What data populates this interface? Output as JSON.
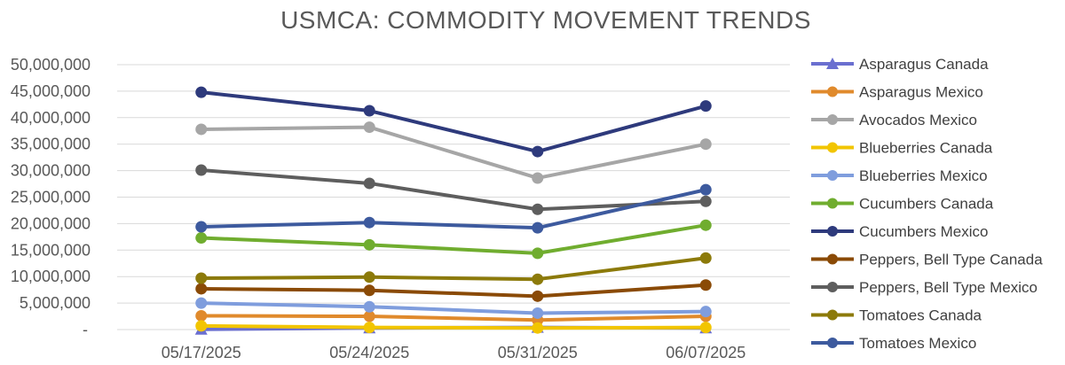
{
  "chart_data": {
    "type": "line",
    "title": "USMCA: COMMODITY MOVEMENT TRENDS",
    "xlabel": "",
    "ylabel": "",
    "categories": [
      "05/17/2025",
      "05/24/2025",
      "05/31/2025",
      "06/07/2025"
    ],
    "ylim": [
      0,
      50000000
    ],
    "yticks": [
      0,
      5000000,
      10000000,
      15000000,
      20000000,
      25000000,
      30000000,
      35000000,
      40000000,
      45000000,
      50000000
    ],
    "ytick_labels": [
      "-",
      "5,000,000",
      "10,000,000",
      "15,000,000",
      "20,000,000",
      "25,000,000",
      "30,000,000",
      "35,000,000",
      "40,000,000",
      "45,000,000",
      "50,000,000"
    ],
    "grid": true,
    "legend": "right",
    "series": [
      {
        "name": "Asparagus Canada",
        "color": "#6a6fd0",
        "marker": "triangle",
        "values": [
          50000,
          300000,
          400000,
          300000
        ]
      },
      {
        "name": "Asparagus Mexico",
        "color": "#e08a2c",
        "marker": "circle",
        "values": [
          2600000,
          2500000,
          1800000,
          2500000
        ]
      },
      {
        "name": "Avocados Mexico",
        "color": "#a6a6a6",
        "marker": "circle",
        "values": [
          37800000,
          38200000,
          28600000,
          35000000
        ]
      },
      {
        "name": "Blueberries Canada",
        "color": "#f2c500",
        "marker": "circle",
        "values": [
          700000,
          400000,
          300000,
          400000
        ]
      },
      {
        "name": "Blueberries Mexico",
        "color": "#7f9ddd",
        "marker": "circle",
        "values": [
          5000000,
          4300000,
          3100000,
          3400000
        ]
      },
      {
        "name": "Cucumbers Canada",
        "color": "#70ad2f",
        "marker": "circle",
        "values": [
          17300000,
          16000000,
          14400000,
          19700000
        ]
      },
      {
        "name": "Cucumbers Mexico",
        "color": "#2e3a7c",
        "marker": "circle",
        "values": [
          44800000,
          41300000,
          33600000,
          42200000
        ]
      },
      {
        "name": "Peppers, Bell Type Canada",
        "color": "#8a4a06",
        "marker": "circle",
        "values": [
          7700000,
          7400000,
          6300000,
          8400000
        ]
      },
      {
        "name": "Peppers, Bell Type Mexico",
        "color": "#5e5e5e",
        "marker": "circle",
        "values": [
          30100000,
          27600000,
          22700000,
          24200000
        ]
      },
      {
        "name": "Tomatoes Canada",
        "color": "#8c7a0a",
        "marker": "circle",
        "values": [
          9700000,
          9900000,
          9500000,
          13500000
        ]
      },
      {
        "name": "Tomatoes Mexico",
        "color": "#3d5a9e",
        "marker": "circle",
        "values": [
          19400000,
          20200000,
          19200000,
          26400000
        ]
      }
    ]
  }
}
